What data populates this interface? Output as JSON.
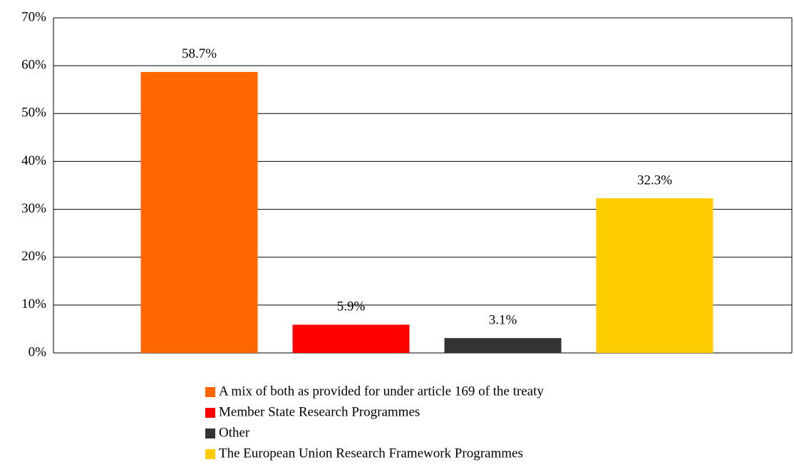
{
  "chart_data": {
    "type": "bar",
    "categories": [
      null
    ],
    "series": [
      {
        "name": "A mix of both as provided for under article 169 of the treaty",
        "color": "#ff6600",
        "values": [
          58.7
        ],
        "value_labels": [
          "58.7%"
        ]
      },
      {
        "name": "Member State Research Programmes",
        "color": "#ff0000",
        "values": [
          5.9
        ],
        "value_labels": [
          "5.9%"
        ]
      },
      {
        "name": "Other",
        "color": "#333333",
        "values": [
          3.1
        ],
        "value_labels": [
          "3.1%"
        ]
      },
      {
        "name": "The European Union Research Framework Programmes",
        "color": "#ffcc00",
        "values": [
          32.3
        ],
        "value_labels": [
          "32.3%"
        ]
      }
    ],
    "ylim": [
      0,
      70
    ],
    "yticks": [
      {
        "value": 0,
        "label": "0%"
      },
      {
        "value": 10,
        "label": "10%"
      },
      {
        "value": 20,
        "label": "20%"
      },
      {
        "value": 30,
        "label": "30%"
      },
      {
        "value": 40,
        "label": "40%"
      },
      {
        "value": 50,
        "label": "50%"
      },
      {
        "value": 60,
        "label": "60%"
      },
      {
        "value": 70,
        "label": "70%"
      }
    ],
    "grid": true,
    "legend": "bottom"
  }
}
